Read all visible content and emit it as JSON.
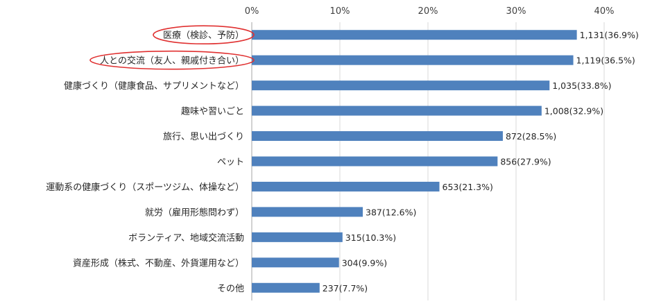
{
  "chart_data": {
    "type": "bar",
    "orientation": "horizontal",
    "categories": [
      "医療（検診、予防）",
      "人との交流（友人、親戚付き合い）",
      "健康づくり（健康食品、サプリメントなど）",
      "趣味や習いごと",
      "旅行、思い出づくり",
      "ペット",
      "運動系の健康づくり（スポーツジム、体操など）",
      "就労（雇用形態問わず）",
      "ボランティア、地域交流活動",
      "資産形成（株式、不動産、外貨運用など）",
      "その他"
    ],
    "counts": [
      1131,
      1119,
      1035,
      1008,
      872,
      856,
      653,
      387,
      315,
      304,
      237
    ],
    "values": [
      36.9,
      36.5,
      33.8,
      32.9,
      28.5,
      27.9,
      21.3,
      12.6,
      10.3,
      9.9,
      7.7
    ],
    "data_labels": [
      "1,131(36.9%)",
      "1,119(36.5%)",
      "1,035(33.8%)",
      "1,008(32.9%)",
      "872(28.5%)",
      "856(27.9%)",
      "653(21.3%)",
      "387(12.6%)",
      "315(10.3%)",
      "304(9.9%)",
      "237(7.7%)"
    ],
    "x_ticks": [
      "0%",
      "10%",
      "20%",
      "30%",
      "40%"
    ],
    "xlim": [
      0,
      40
    ],
    "x_axis_position": "top",
    "grid": true,
    "highlighted_categories": [
      0,
      1
    ],
    "colors": {
      "bar": "#4f81bd",
      "highlight": "#e03030",
      "grid": "#d9d9d9"
    }
  }
}
